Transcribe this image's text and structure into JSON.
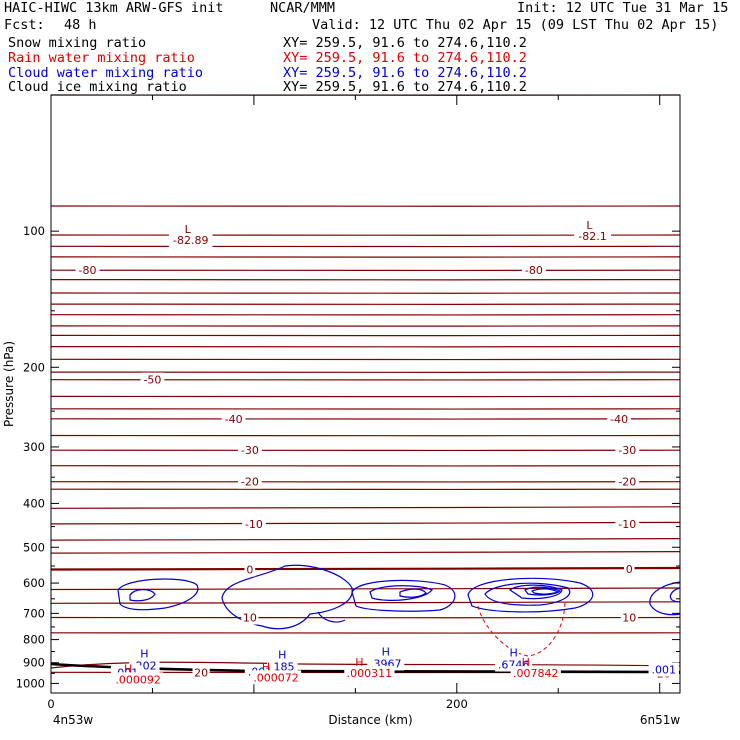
{
  "header": {
    "model": "HAIC-HIWC 13km ARW-GFS init",
    "org": "NCAR/MMM",
    "init": "Init: 12 UTC Tue 31 Mar 15",
    "fcst_label": "Fcst:",
    "fcst_value": "48 h",
    "valid": "Valid: 12 UTC Thu 02 Apr 15 (09 LST Thu 02 Apr 15)"
  },
  "fields": [
    {
      "name": "Snow mixing ratio",
      "xy": "XY= 259.5, 91.6 to 274.6,110.2",
      "color": "#000000"
    },
    {
      "name": "Rain water mixing ratio",
      "xy": "XY= 259.5, 91.6 to 274.6,110.2",
      "color": "#e00000"
    },
    {
      "name": "Cloud water mixing ratio",
      "xy": "XY= 259.5, 91.6 to 274.6,110.2",
      "color": "#0000d0"
    },
    {
      "name": "Cloud ice mixing ratio",
      "xy": "XY= 259.5, 91.6 to 274.6,110.2",
      "color": "#000000"
    }
  ],
  "chart_data": {
    "type": "contour",
    "xlabel": "Distance (km)",
    "ylabel": "Pressure (hPa)",
    "x_ticks": [
      0,
      200
    ],
    "y_ticks": [
      100,
      200,
      300,
      400,
      500,
      600,
      700,
      800,
      900,
      1000
    ],
    "y_scale": "log",
    "xlim": [
      0,
      310
    ],
    "ylim": [
      1050,
      50
    ],
    "left_endpoint": "4n53w",
    "right_endpoint": "6n51w",
    "temperature_labels": [
      {
        "text": "-80",
        "x": 18,
        "p": 122
      },
      {
        "text": "-80",
        "x": 238,
        "p": 122
      },
      {
        "text": "-50",
        "x": 50,
        "p": 213
      },
      {
        "text": "-40",
        "x": 90,
        "p": 260
      },
      {
        "text": "-40",
        "x": 280,
        "p": 260
      },
      {
        "text": "-30",
        "x": 98,
        "p": 305
      },
      {
        "text": "-30",
        "x": 284,
        "p": 305
      },
      {
        "text": "-20",
        "x": 98,
        "p": 358
      },
      {
        "text": "-20",
        "x": 284,
        "p": 358
      },
      {
        "text": "-10",
        "x": 100,
        "p": 444
      },
      {
        "text": "-10",
        "x": 284,
        "p": 444
      },
      {
        "text": "0",
        "x": 98,
        "p": 560
      },
      {
        "text": "0",
        "x": 285,
        "p": 558
      },
      {
        "text": "10",
        "x": 98,
        "p": 715
      },
      {
        "text": "10",
        "x": 285,
        "p": 715
      },
      {
        "text": "20",
        "x": 74,
        "p": 945
      },
      {
        "text": "20",
        "x": 302,
        "p": 950
      }
    ],
    "lows": [
      {
        "label": "L",
        "value": "-82.89",
        "x": 60,
        "p": 95
      },
      {
        "label": "L",
        "value": "-82.1",
        "x": 258,
        "p": 93
      }
    ],
    "cloud_water_maxima": [
      {
        "label": "H",
        "value": ".202",
        "x": 46,
        "p": 895
      },
      {
        "label": "H",
        "value": ".185",
        "x": 114,
        "p": 900
      },
      {
        "label": "H",
        "value": ".3967",
        "x": 165,
        "p": 885
      },
      {
        "label": "H",
        "value": ".6746",
        "x": 228,
        "p": 890
      }
    ],
    "cloud_water_contour_labels": [
      {
        "text": ".001",
        "x": 37,
        "p": 945
      },
      {
        "text": ".001",
        "x": 103,
        "p": 940
      },
      {
        "text": ".001",
        "x": 302,
        "p": 932
      }
    ],
    "rain_maxima": [
      {
        "label": "H",
        "value": ".000092",
        "x": 38,
        "p": 955
      },
      {
        "label": "H",
        "value": ".000072",
        "x": 106,
        "p": 945
      },
      {
        "label": "H",
        "value": ".000311",
        "x": 152,
        "p": 925
      },
      {
        "label": "H",
        "value": ".007842",
        "x": 234,
        "p": 925
      }
    ]
  },
  "colors": {
    "temperature": "#800000",
    "cloud_water": "#0000d0",
    "rain": "#e00000",
    "terrain": "#000000",
    "frame": "#000000"
  }
}
